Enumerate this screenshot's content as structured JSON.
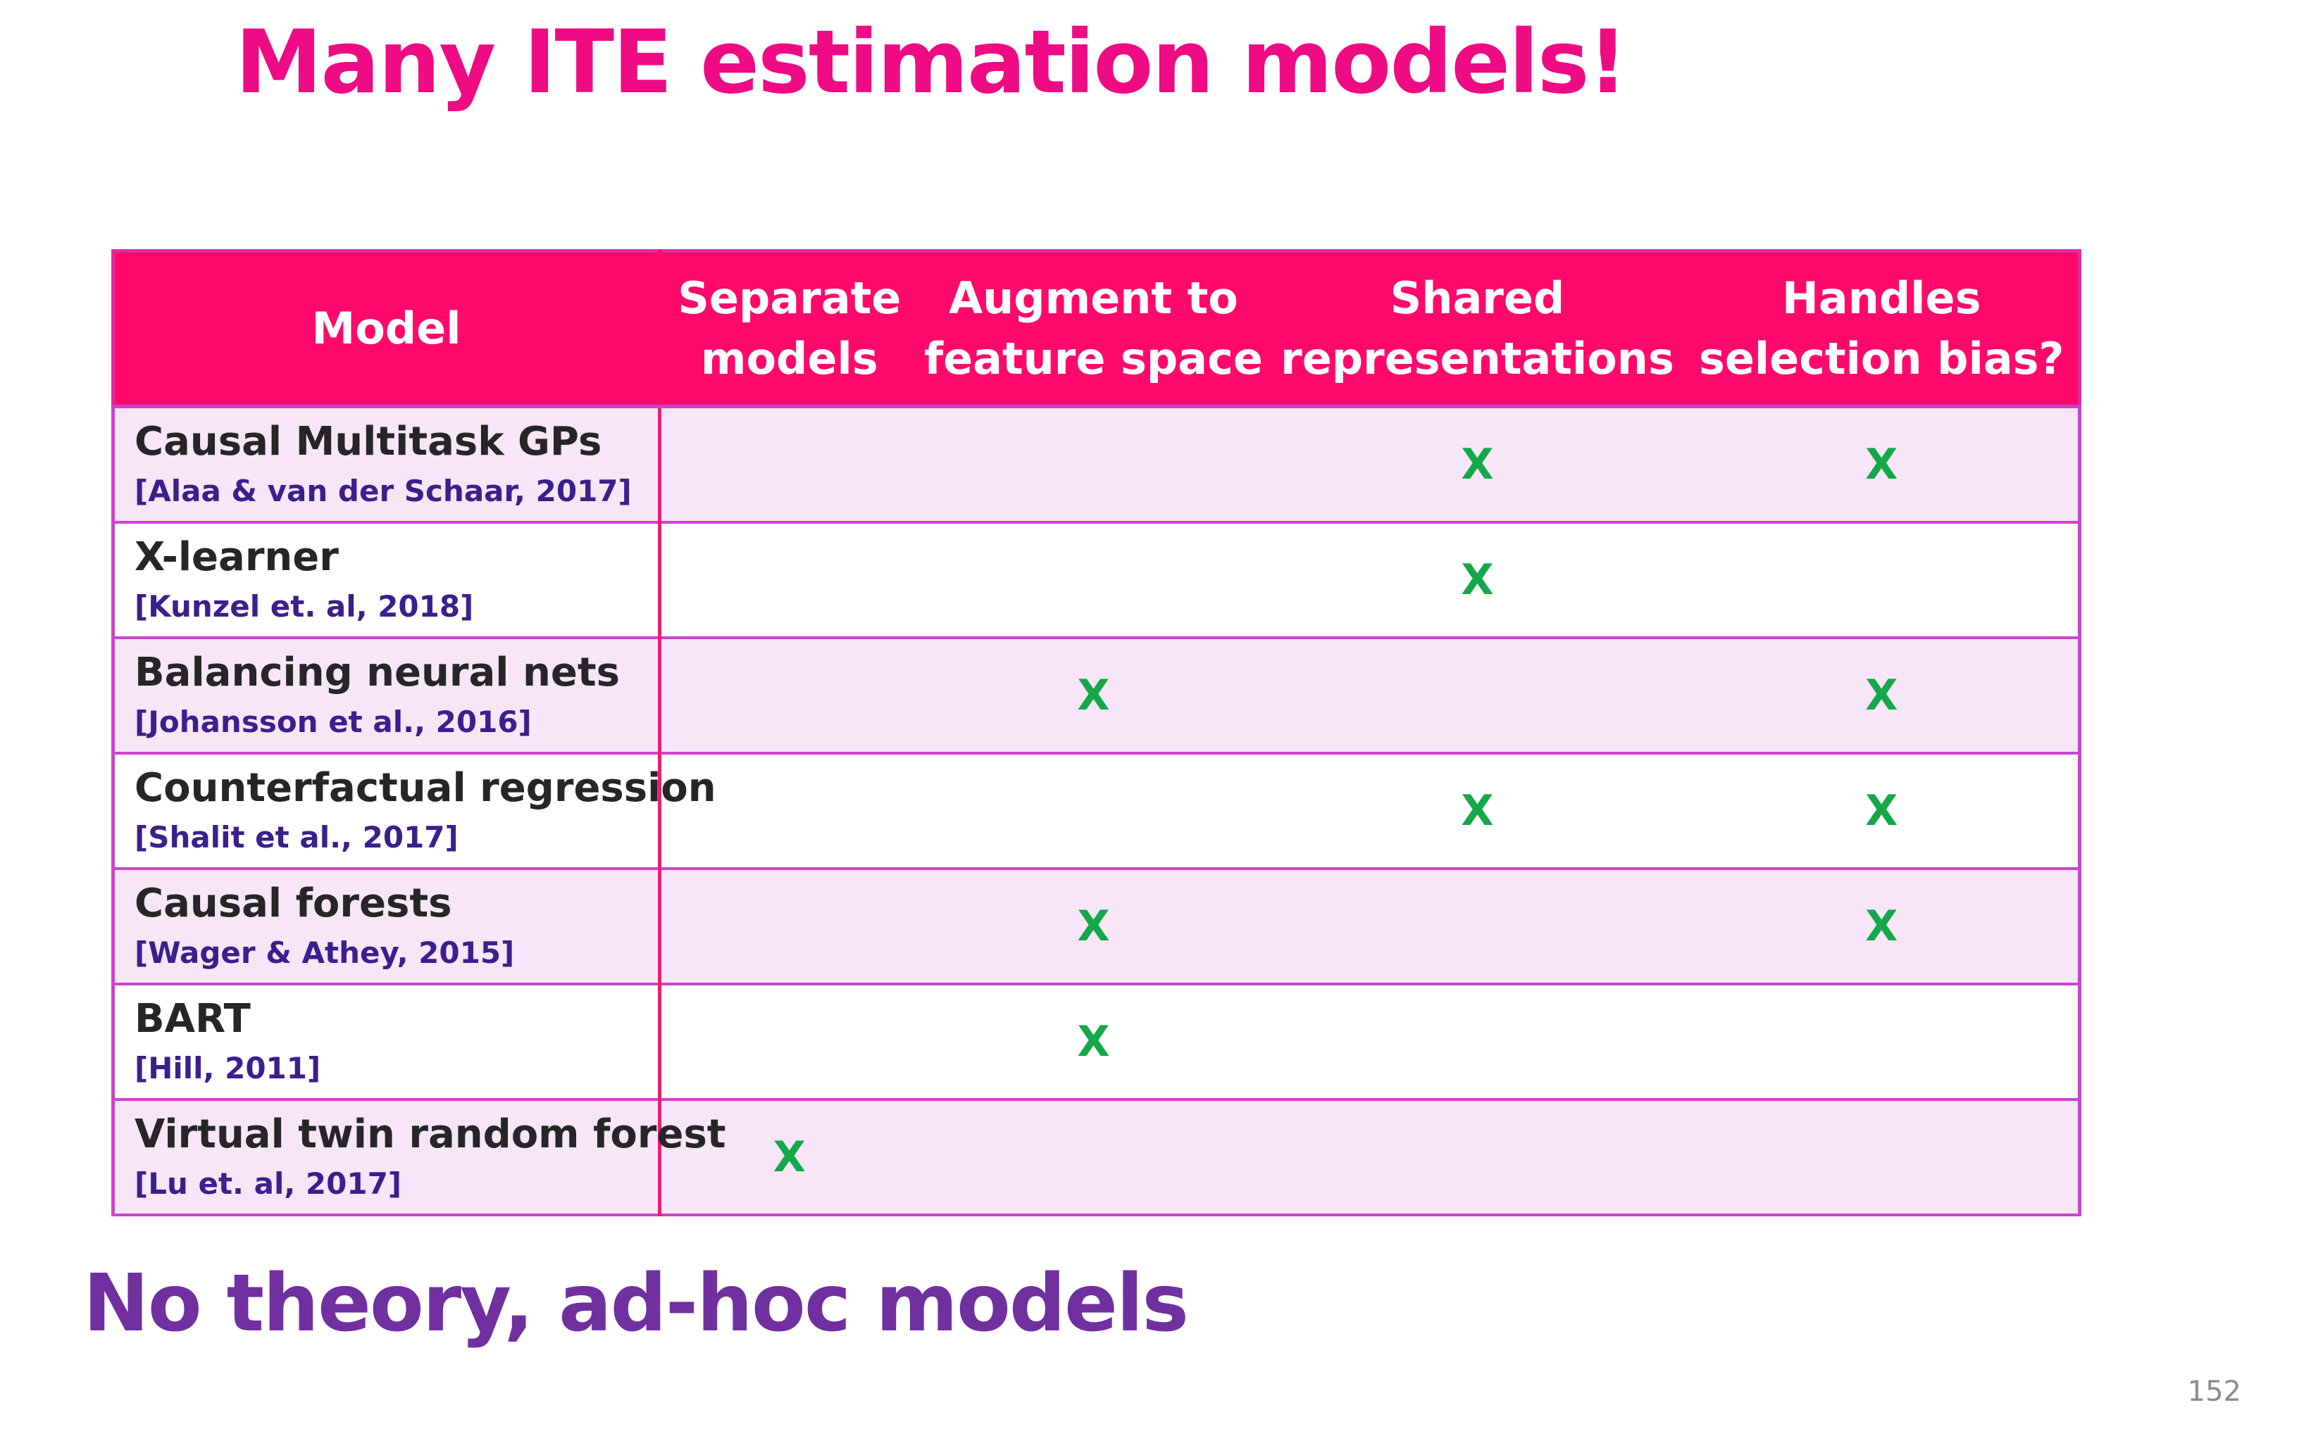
{
  "slide": {
    "title": "Many ITE estimation models!",
    "footer_note": "No theory, ad-hoc models",
    "page_number": "152"
  },
  "table": {
    "headers": {
      "model": "Model",
      "separate": "Separate models",
      "augment": "Augment to feature space",
      "shared": "Shared representations",
      "bias": "Handles selection bias?"
    },
    "header_lines": {
      "separate": [
        "Separate",
        "models"
      ],
      "augment": [
        "Augment to",
        "feature space"
      ],
      "shared": [
        "Shared",
        "representations"
      ],
      "bias": [
        "Handles",
        "selection bias?"
      ]
    },
    "rows": [
      {
        "name": "Causal Multitask GPs",
        "citation": "[Alaa & van der Schaar, 2017]",
        "separate": "",
        "augment": "",
        "shared": "X",
        "bias": "X"
      },
      {
        "name": "X-learner",
        "citation": "[Kunzel et. al, 2018]",
        "separate": "",
        "augment": "",
        "shared": "X",
        "bias": ""
      },
      {
        "name": "Balancing neural nets",
        "citation": "[Johansson et al., 2016]",
        "separate": "",
        "augment": "X",
        "shared": "",
        "bias": "X"
      },
      {
        "name": "Counterfactual regression",
        "citation": "[Shalit et al., 2017]",
        "separate": "",
        "augment": "",
        "shared": "X",
        "bias": "X"
      },
      {
        "name": "Causal forests",
        "citation": "[Wager & Athey, 2015]",
        "separate": "",
        "augment": "X",
        "shared": "",
        "bias": "X"
      },
      {
        "name": "BART",
        "citation": "[Hill, 2011]",
        "separate": "",
        "augment": "X",
        "shared": "",
        "bias": ""
      },
      {
        "name": "Virtual twin random forest",
        "citation": "[Lu et. al, 2017]",
        "separate": "X",
        "augment": "",
        "shared": "",
        "bias": ""
      }
    ]
  },
  "colors": {
    "title": "#ee0b84",
    "header_background": "#ff0a6c",
    "row_shade": "#f6e6f7",
    "grid_line": "#cc44cc",
    "check_mark": "#14a84a",
    "citation": "#3b1f8c",
    "footer_note": "#7030a0"
  }
}
